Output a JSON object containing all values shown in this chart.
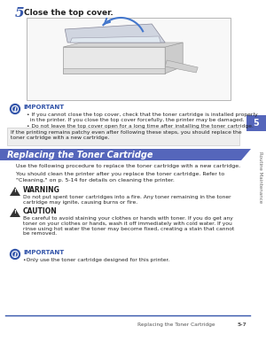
{
  "bg_color": "#ffffff",
  "blue_accent": "#3355aa",
  "tab_bg": "#5566bb",
  "sidebar_bg": "#5566bb",
  "important_color": "#3355aa",
  "text_color": "#222222",
  "footer_line_color": "#3355aa",
  "step_number": "5",
  "step_text": "Close the top cover.",
  "important1_title": "IMPORTANT",
  "bullet1a": "If you cannot close the top cover, check that the toner cartridge is installed properly\n  in the printer. If you close the top cover forcefully, the printer may be damaged.",
  "bullet1b": "Do not leave the top cover open for a long time after installing the toner cartridge.",
  "gray_box_text": "If the printing remains patchy even after following these steps, you should replace the\ntoner cartridge with a new cartridge.",
  "section_title": "Replacing the Toner Cartridge",
  "para1": "Use the following procedure to replace the toner cartridge with a new cartridge.",
  "para2a": "You should clean the printer after you replace the toner cartridge. Refer to",
  "para2b": "\"Cleaning,\" on p. 5-14 for details on cleaning the printer.",
  "warning_title": "WARNING",
  "warning_text": "Do not put spent toner cartridges into a fire. Any toner remaining in the toner\ncartridge may ignite, causing burns or fire.",
  "caution_title": "CAUTION",
  "caution_text": "Be careful to avoid staining your clothes or hands with toner. If you do get any\ntoner on your clothes or hands, wash it off immediately with cold water. If you\nrinse using hot water the toner may become fixed, creating a stain that cannot\nbe removed.",
  "important2_title": "IMPORTANT",
  "important2_text": "•Only use the toner cartridge designed for this printer.",
  "sidebar_text": "Routine Maintenance",
  "sidebar_number": "5",
  "footer_left": "Replacing the Toner Cartridge",
  "footer_right": "5-7"
}
